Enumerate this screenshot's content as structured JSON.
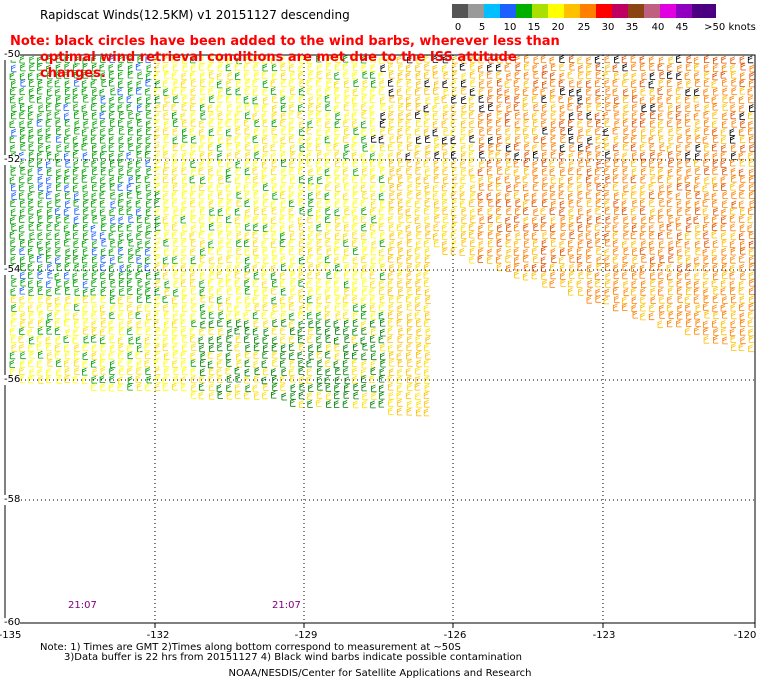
{
  "title": "Rapidscat Winds(12.5KM) v1 20151127 descending",
  "note_line1": "Note: black circles have been added to the wind barbs, wherever less than",
  "note_line2": "optimal wind retrieval conditions are met due to the ISS attitude changes.",
  "legend": {
    "labels": [
      "0",
      "5",
      "10",
      "15",
      "20",
      "25",
      "30",
      "35",
      "40",
      "45",
      ">50 knots"
    ],
    "colors": [
      "#555555",
      "#9a9a9a",
      "#00bfff",
      "#1e60ff",
      "#00b000",
      "#a8e000",
      "#ffff00",
      "#ffc000",
      "#ff8000",
      "#ff0000",
      "#c00060",
      "#8b4513",
      "#c06080",
      "#e000e0",
      "#9000c0",
      "#4b0082"
    ]
  },
  "axes": {
    "y_labels": [
      "-50",
      "-52",
      "-54",
      "-56",
      "-58",
      "-60"
    ],
    "x_labels": [
      "-135",
      "-132",
      "-129",
      "-126",
      "-123",
      "-120"
    ]
  },
  "times": [
    "21:07",
    "21:07"
  ],
  "footnote_line1": "Note: 1) Times are GMT 2)Times along bottom correspond to measurement at ~50S",
  "footnote_line2": "3)Data buffer is 22 hrs from 20151127 4) Black wind barbs indicate possible contamination",
  "credit": "NOAA/NESDIS/Center for Satellite Applications and Research"
}
